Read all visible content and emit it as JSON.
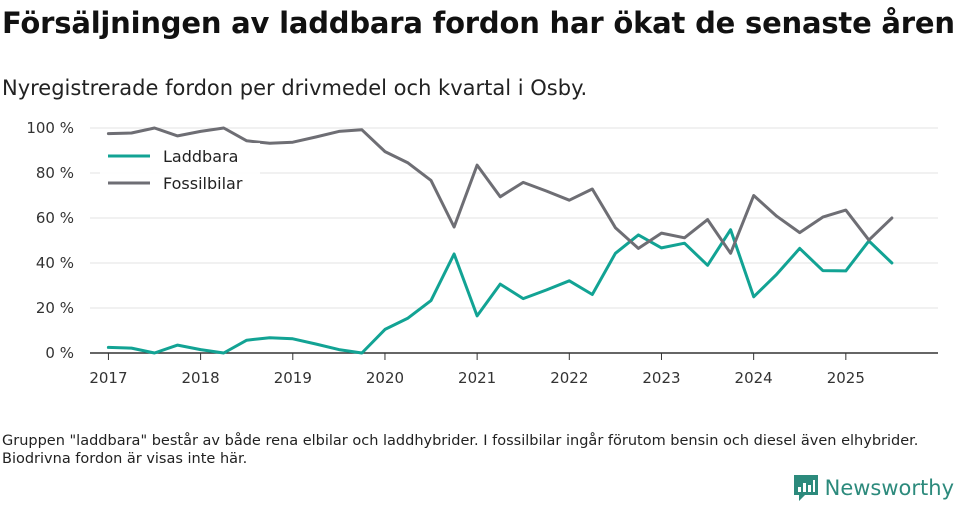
{
  "title": "Försäljningen av laddbara fordon har ökat de senaste åren",
  "subtitle": "Nyregistrerade fordon per drivmedel och kvartal i Osby.",
  "footnote": "Gruppen \"laddbara\" består av både rena elbilar och laddhybrider. I fossilbilar ingår förutom bensin och diesel även elhybrider. Biodrivna fordon är visas inte här.",
  "brand": {
    "name": "Newsworthy",
    "icon": "newsworthy-logo-icon",
    "color": "#2c8a7c"
  },
  "chart_data": {
    "type": "line",
    "title": "Försäljningen av laddbara fordon har ökat de senaste åren",
    "subtitle": "Nyregistrerade fordon per drivmedel och kvartal i Osby.",
    "xlabel": "",
    "ylabel": "",
    "xlim": [
      2016.8,
      2026.0
    ],
    "ylim": [
      0,
      100
    ],
    "grid": true,
    "legend_position": "top-left",
    "x_ticks": [
      2017,
      2018,
      2019,
      2020,
      2021,
      2022,
      2023,
      2024,
      2025
    ],
    "x_tick_labels": [
      "2017",
      "2018",
      "2019",
      "2020",
      "2021",
      "2022",
      "2023",
      "2024",
      "2025"
    ],
    "y_ticks": [
      0,
      20,
      40,
      60,
      80,
      100
    ],
    "y_tick_labels": [
      "0 %",
      "20 %",
      "40 %",
      "60 %",
      "80 %",
      "100 %"
    ],
    "x": [
      2017.0,
      2017.25,
      2017.5,
      2017.75,
      2018.0,
      2018.25,
      2018.5,
      2018.75,
      2019.0,
      2019.25,
      2019.5,
      2019.75,
      2020.0,
      2020.25,
      2020.5,
      2020.75,
      2021.0,
      2021.25,
      2021.5,
      2021.75,
      2022.0,
      2022.25,
      2022.5,
      2022.75,
      2023.0,
      2023.25,
      2023.5,
      2023.75,
      2024.0,
      2024.25,
      2024.5,
      2024.75,
      2025.0,
      2025.25,
      2025.5
    ],
    "series": [
      {
        "name": "Laddbara",
        "color": "#12a394",
        "values": [
          2.5,
          2.2,
          0,
          3.5,
          1.5,
          0,
          5.7,
          6.8,
          6.3,
          4,
          1.5,
          0,
          10.5,
          15.5,
          23.3,
          44,
          16.5,
          30.6,
          24.2,
          28,
          32.1,
          26,
          44.3,
          52.5,
          46.7,
          48.8,
          39,
          54.8,
          25,
          35,
          46.5,
          36.6,
          36.5,
          49.8,
          40
        ]
      },
      {
        "name": "Fossilbilar",
        "color": "#6e6e74",
        "values": [
          97.5,
          97.8,
          100,
          96.5,
          98.5,
          100,
          94.3,
          93.2,
          93.7,
          96,
          98.5,
          99.2,
          89.5,
          84.5,
          76.7,
          56,
          83.5,
          69.4,
          75.8,
          72,
          67.9,
          72.9,
          55.7,
          46.5,
          53.3,
          51.2,
          59.3,
          44.3,
          70,
          60.8,
          53.5,
          60.4,
          63.5,
          50.2,
          60
        ]
      }
    ]
  }
}
